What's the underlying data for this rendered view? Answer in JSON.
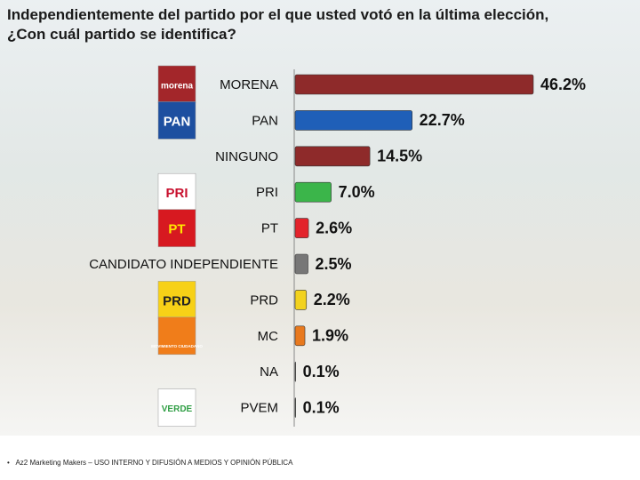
{
  "chart_data": {
    "type": "bar",
    "orientation": "horizontal",
    "title": "Independientemente del partido por el que usted votó en la última elección, ¿Con cuál partido se identifica?",
    "categories": [
      "MORENA",
      "PAN",
      "NINGUNO",
      "PRI",
      "PT",
      "CANDIDATO INDEPENDIENTE",
      "PRD",
      "MC",
      "NA",
      "PVEM"
    ],
    "values": [
      46.2,
      22.7,
      14.5,
      7.0,
      2.6,
      2.5,
      2.2,
      1.9,
      0.1,
      0.1
    ],
    "value_labels": [
      "46.2%",
      "22.7%",
      "14.5%",
      "7.0%",
      "2.6%",
      "2.5%",
      "2.2%",
      "1.9%",
      "0.1%",
      "0.1%"
    ],
    "colors": [
      "#8e2a2a",
      "#1f5fb8",
      "#8e2a2a",
      "#3bb54a",
      "#e3232b",
      "#777777",
      "#f2d21e",
      "#e8791e",
      "#999999",
      "#3bb54a"
    ]
  },
  "logos": [
    {
      "text": "morena",
      "bg": "#a3262a",
      "fg": "#ffffff"
    },
    {
      "text": "PAN",
      "bg": "#1d4fa0",
      "fg": "#ffffff"
    },
    null,
    {
      "text": "PRI",
      "bg": "#ffffff",
      "fg": "#c8102e"
    },
    {
      "text": "PT",
      "bg": "#d71920",
      "fg": "#ffe600"
    },
    null,
    {
      "text": "PRD",
      "bg": "#f7d117",
      "fg": "#222222"
    },
    {
      "text": "MOVIMIENTO CIUDADANO",
      "bg": "#f07d1a",
      "fg": "#ffffff"
    },
    null,
    {
      "text": "VERDE",
      "bg": "#ffffff",
      "fg": "#2f9e44"
    }
  ],
  "footer": "Az2 Marketing Makers – USO INTERNO Y DIFUSIÓN A MEDIOS Y OPINIÓN PÚBLICA"
}
